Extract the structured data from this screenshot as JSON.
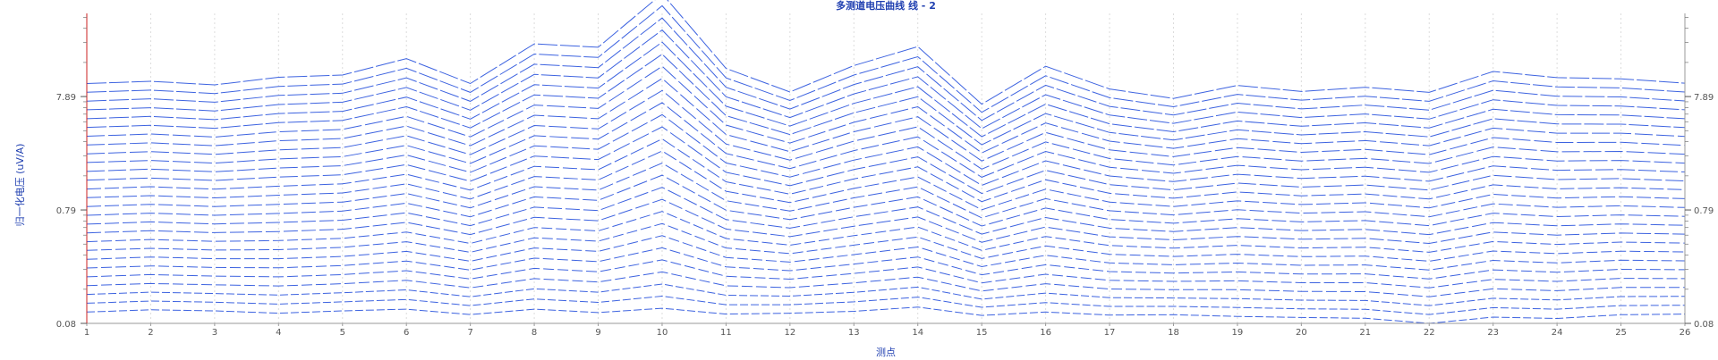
{
  "chart_data": {
    "type": "line",
    "title": "多测道电压曲线 线 - 2",
    "xlabel": "测点",
    "ylabel": "归一化电压 (uV/A)",
    "x": [
      "1",
      "2",
      "3",
      "4",
      "5",
      "6",
      "7",
      "8",
      "9",
      "10",
      "11",
      "12",
      "13",
      "14",
      "15",
      "16",
      "17",
      "18",
      "19",
      "20",
      "21",
      "22",
      "23",
      "24",
      "25",
      "26"
    ],
    "y_ticks": [
      "0.08",
      "0.79",
      "7.89"
    ],
    "y_tick_positions": [
      0,
      0.6,
      1.2
    ],
    "ylim": [
      0,
      1.64
    ],
    "y_scale": "log",
    "grid_x": true,
    "grid_y": false,
    "line_color": "#3d63e0",
    "line_style": "dashed",
    "series": [
      {
        "values": [
          0.06,
          0.072,
          0.066,
          0.054,
          0.066,
          0.075,
          0.047,
          0.075,
          0.057,
          0.08,
          0.049,
          0.054,
          0.064,
          0.086,
          0.042,
          0.06,
          0.044,
          0.046,
          0.037,
          0.031,
          0.027,
          0.0,
          0.033,
          0.026,
          0.046,
          0.049
        ]
      },
      {
        "values": [
          0.107,
          0.118,
          0.112,
          0.102,
          0.114,
          0.126,
          0.094,
          0.129,
          0.111,
          0.144,
          0.099,
          0.099,
          0.114,
          0.139,
          0.085,
          0.11,
          0.09,
          0.09,
          0.084,
          0.077,
          0.074,
          0.047,
          0.083,
          0.075,
          0.094,
          0.096
        ]
      },
      {
        "values": [
          0.153,
          0.165,
          0.158,
          0.15,
          0.162,
          0.177,
          0.141,
          0.183,
          0.165,
          0.208,
          0.149,
          0.144,
          0.164,
          0.192,
          0.128,
          0.16,
          0.136,
          0.134,
          0.131,
          0.123,
          0.121,
          0.094,
          0.133,
          0.124,
          0.142,
          0.143
        ]
      },
      {
        "values": [
          0.2,
          0.211,
          0.204,
          0.198,
          0.21,
          0.228,
          0.188,
          0.237,
          0.219,
          0.272,
          0.199,
          0.189,
          0.214,
          0.245,
          0.171,
          0.21,
          0.182,
          0.178,
          0.178,
          0.169,
          0.168,
          0.141,
          0.183,
          0.173,
          0.19,
          0.19
        ]
      },
      {
        "values": [
          0.246,
          0.258,
          0.25,
          0.246,
          0.258,
          0.279,
          0.235,
          0.291,
          0.273,
          0.336,
          0.249,
          0.234,
          0.264,
          0.298,
          0.214,
          0.26,
          0.228,
          0.222,
          0.225,
          0.215,
          0.215,
          0.188,
          0.233,
          0.222,
          0.238,
          0.237
        ]
      },
      {
        "values": [
          0.293,
          0.304,
          0.296,
          0.294,
          0.306,
          0.33,
          0.282,
          0.345,
          0.327,
          0.4,
          0.299,
          0.279,
          0.314,
          0.351,
          0.257,
          0.31,
          0.274,
          0.266,
          0.272,
          0.261,
          0.262,
          0.235,
          0.283,
          0.271,
          0.286,
          0.284
        ]
      },
      {
        "values": [
          0.339,
          0.351,
          0.342,
          0.342,
          0.354,
          0.381,
          0.329,
          0.399,
          0.381,
          0.464,
          0.349,
          0.324,
          0.364,
          0.404,
          0.3,
          0.36,
          0.32,
          0.31,
          0.319,
          0.307,
          0.309,
          0.282,
          0.333,
          0.32,
          0.334,
          0.331
        ]
      },
      {
        "values": [
          0.386,
          0.397,
          0.388,
          0.39,
          0.402,
          0.432,
          0.376,
          0.453,
          0.435,
          0.528,
          0.399,
          0.369,
          0.414,
          0.457,
          0.343,
          0.41,
          0.366,
          0.354,
          0.366,
          0.353,
          0.356,
          0.329,
          0.383,
          0.369,
          0.382,
          0.378
        ]
      },
      {
        "values": [
          0.432,
          0.444,
          0.434,
          0.438,
          0.45,
          0.483,
          0.423,
          0.507,
          0.489,
          0.592,
          0.449,
          0.414,
          0.464,
          0.51,
          0.386,
          0.46,
          0.412,
          0.398,
          0.413,
          0.399,
          0.403,
          0.376,
          0.433,
          0.418,
          0.43,
          0.425
        ]
      },
      {
        "values": [
          0.479,
          0.49,
          0.48,
          0.486,
          0.498,
          0.534,
          0.47,
          0.561,
          0.543,
          0.656,
          0.499,
          0.459,
          0.514,
          0.563,
          0.429,
          0.51,
          0.458,
          0.442,
          0.46,
          0.445,
          0.45,
          0.423,
          0.483,
          0.467,
          0.478,
          0.472
        ]
      },
      {
        "values": [
          0.525,
          0.537,
          0.526,
          0.534,
          0.546,
          0.585,
          0.517,
          0.615,
          0.597,
          0.72,
          0.549,
          0.504,
          0.564,
          0.616,
          0.472,
          0.56,
          0.504,
          0.486,
          0.507,
          0.491,
          0.497,
          0.47,
          0.533,
          0.516,
          0.526,
          0.519
        ]
      },
      {
        "values": [
          0.572,
          0.583,
          0.572,
          0.582,
          0.594,
          0.636,
          0.564,
          0.669,
          0.651,
          0.784,
          0.599,
          0.549,
          0.614,
          0.669,
          0.515,
          0.61,
          0.55,
          0.53,
          0.554,
          0.537,
          0.544,
          0.517,
          0.583,
          0.565,
          0.574,
          0.566
        ]
      },
      {
        "values": [
          0.618,
          0.63,
          0.618,
          0.63,
          0.642,
          0.687,
          0.611,
          0.723,
          0.705,
          0.848,
          0.649,
          0.594,
          0.664,
          0.722,
          0.558,
          0.66,
          0.596,
          0.574,
          0.601,
          0.583,
          0.591,
          0.564,
          0.633,
          0.614,
          0.622,
          0.613
        ]
      },
      {
        "values": [
          0.665,
          0.676,
          0.664,
          0.678,
          0.69,
          0.738,
          0.658,
          0.777,
          0.759,
          0.912,
          0.699,
          0.639,
          0.714,
          0.775,
          0.601,
          0.71,
          0.642,
          0.618,
          0.648,
          0.629,
          0.638,
          0.611,
          0.683,
          0.663,
          0.67,
          0.66
        ]
      },
      {
        "values": [
          0.711,
          0.723,
          0.71,
          0.726,
          0.738,
          0.789,
          0.705,
          0.831,
          0.813,
          0.976,
          0.749,
          0.684,
          0.764,
          0.828,
          0.644,
          0.76,
          0.688,
          0.662,
          0.695,
          0.675,
          0.685,
          0.658,
          0.733,
          0.712,
          0.718,
          0.707
        ]
      },
      {
        "values": [
          0.758,
          0.769,
          0.756,
          0.774,
          0.786,
          0.84,
          0.752,
          0.885,
          0.867,
          1.04,
          0.799,
          0.729,
          0.814,
          0.881,
          0.687,
          0.81,
          0.734,
          0.706,
          0.742,
          0.721,
          0.732,
          0.705,
          0.783,
          0.761,
          0.766,
          0.754
        ]
      },
      {
        "values": [
          0.804,
          0.816,
          0.802,
          0.822,
          0.834,
          0.891,
          0.799,
          0.939,
          0.921,
          1.104,
          0.849,
          0.774,
          0.864,
          0.934,
          0.73,
          0.86,
          0.78,
          0.75,
          0.789,
          0.767,
          0.779,
          0.752,
          0.833,
          0.81,
          0.814,
          0.801
        ]
      },
      {
        "values": [
          0.851,
          0.862,
          0.848,
          0.87,
          0.882,
          0.942,
          0.846,
          0.993,
          0.975,
          1.168,
          0.899,
          0.819,
          0.914,
          0.987,
          0.773,
          0.91,
          0.826,
          0.794,
          0.836,
          0.813,
          0.826,
          0.799,
          0.883,
          0.859,
          0.862,
          0.848
        ]
      },
      {
        "values": [
          0.897,
          0.909,
          0.894,
          0.918,
          0.93,
          0.993,
          0.893,
          1.047,
          1.029,
          1.232,
          0.949,
          0.864,
          0.964,
          1.04,
          0.816,
          0.96,
          0.872,
          0.838,
          0.883,
          0.859,
          0.873,
          0.846,
          0.933,
          0.908,
          0.91,
          0.895
        ]
      },
      {
        "values": [
          0.944,
          0.955,
          0.94,
          0.966,
          0.978,
          1.044,
          0.94,
          1.101,
          1.083,
          1.296,
          0.999,
          0.909,
          1.014,
          1.093,
          0.859,
          1.01,
          0.918,
          0.882,
          0.93,
          0.905,
          0.92,
          0.893,
          0.983,
          0.957,
          0.958,
          0.942
        ]
      },
      {
        "values": [
          0.99,
          1.002,
          0.986,
          1.014,
          1.026,
          1.095,
          0.987,
          1.155,
          1.137,
          1.36,
          1.049,
          0.954,
          1.064,
          1.146,
          0.902,
          1.06,
          0.964,
          0.926,
          0.977,
          0.951,
          0.967,
          0.94,
          1.033,
          1.006,
          1.006,
          0.989
        ]
      },
      {
        "values": [
          1.037,
          1.048,
          1.032,
          1.062,
          1.074,
          1.146,
          1.034,
          1.209,
          1.191,
          1.424,
          1.099,
          0.999,
          1.114,
          1.199,
          0.945,
          1.11,
          1.01,
          0.97,
          1.024,
          0.997,
          1.014,
          0.987,
          1.083,
          1.055,
          1.054,
          1.036
        ]
      },
      {
        "values": [
          1.083,
          1.095,
          1.078,
          1.11,
          1.122,
          1.197,
          1.081,
          1.263,
          1.245,
          1.488,
          1.149,
          1.044,
          1.164,
          1.252,
          0.988,
          1.16,
          1.056,
          1.014,
          1.071,
          1.043,
          1.061,
          1.034,
          1.133,
          1.104,
          1.102,
          1.083
        ]
      },
      {
        "values": [
          1.13,
          1.141,
          1.124,
          1.158,
          1.17,
          1.248,
          1.128,
          1.317,
          1.299,
          1.552,
          1.199,
          1.089,
          1.214,
          1.305,
          1.031,
          1.21,
          1.102,
          1.058,
          1.118,
          1.089,
          1.108,
          1.081,
          1.183,
          1.153,
          1.15,
          1.13
        ]
      },
      {
        "values": [
          1.176,
          1.188,
          1.17,
          1.206,
          1.218,
          1.299,
          1.175,
          1.371,
          1.353,
          1.616,
          1.249,
          1.134,
          1.264,
          1.358,
          1.074,
          1.26,
          1.148,
          1.102,
          1.165,
          1.135,
          1.155,
          1.128,
          1.233,
          1.202,
          1.198,
          1.177
        ]
      },
      {
        "values": [
          1.223,
          1.234,
          1.216,
          1.254,
          1.266,
          1.35,
          1.222,
          1.425,
          1.407,
          1.68,
          1.299,
          1.179,
          1.314,
          1.411,
          1.117,
          1.31,
          1.194,
          1.146,
          1.212,
          1.181,
          1.202,
          1.175,
          1.283,
          1.251,
          1.246,
          1.224
        ]
      },
      {
        "values": [
          1.269,
          1.281,
          1.262,
          1.302,
          1.314,
          1.401,
          1.269,
          1.479,
          1.461,
          1.744,
          1.349,
          1.224,
          1.364,
          1.464,
          1.16,
          1.36,
          1.24,
          1.19,
          1.259,
          1.227,
          1.249,
          1.222,
          1.333,
          1.3,
          1.294,
          1.271
        ]
      }
    ]
  }
}
